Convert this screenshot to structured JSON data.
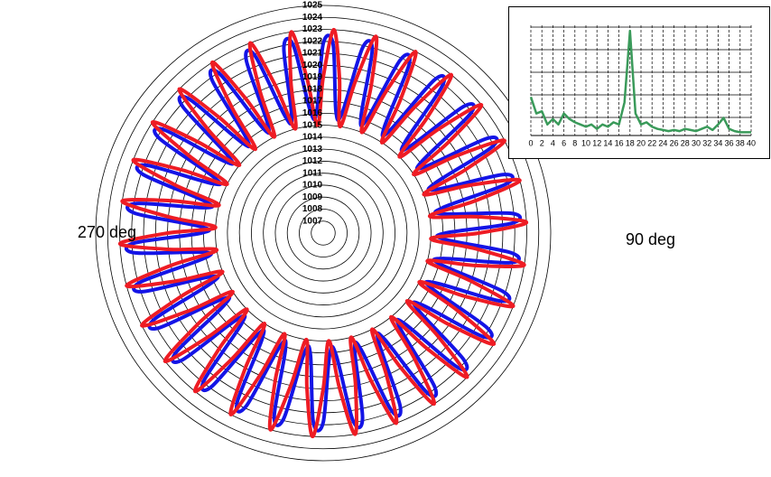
{
  "chart_data": [
    {
      "type": "polar",
      "rlim": [
        1006,
        1025
      ],
      "rticks": [
        1007,
        1008,
        1009,
        1010,
        1011,
        1012,
        1013,
        1014,
        1015,
        1016,
        1017,
        1018,
        1019,
        1020,
        1021,
        1022,
        1023,
        1024,
        1025
      ],
      "theta_direction": "clockwise",
      "theta_zero": "top",
      "theta_labels": [
        {
          "value": 270,
          "label": "270 deg"
        },
        {
          "value": 90,
          "label": "90 deg"
        }
      ],
      "theta": [
        0,
        3,
        6,
        9,
        12,
        15,
        18,
        21,
        24,
        27,
        30,
        33,
        36,
        39,
        42,
        45,
        48,
        51,
        54,
        57,
        60,
        63,
        66,
        69,
        72,
        75,
        78,
        81,
        84,
        87,
        90,
        93,
        96,
        99,
        102,
        105,
        108,
        111,
        114,
        117,
        120,
        123,
        126,
        129,
        132,
        135,
        138,
        141,
        144,
        147,
        150,
        153,
        156,
        159,
        162,
        165,
        168,
        171,
        174,
        177,
        180,
        183,
        186,
        189,
        192,
        195,
        198,
        201,
        204,
        207,
        210,
        213,
        216,
        219,
        222,
        225,
        228,
        231,
        234,
        237,
        240,
        243,
        246,
        249,
        252,
        255,
        258,
        261,
        264,
        267,
        270,
        273,
        276,
        279,
        282,
        285,
        288,
        291,
        294,
        297,
        300,
        303,
        306,
        309,
        312,
        315,
        318,
        321,
        324,
        327,
        330,
        333,
        336,
        339,
        342,
        345,
        348,
        351,
        354,
        357
      ],
      "series": [
        {
          "color": "#1414e6",
          "values": [
            1021.8,
            1021.8,
            1016.2,
            1016.2,
            1021.8,
            1021.8,
            1016.2,
            1016.2,
            1021.8,
            1021.8,
            1016.2,
            1016.2,
            1021.8,
            1021.8,
            1016.2,
            1016.2,
            1021.8,
            1021.8,
            1016.2,
            1016.2,
            1021.8,
            1021.8,
            1016.2,
            1016.2,
            1021.8,
            1021.8,
            1016.2,
            1016.2,
            1021.8,
            1021.8,
            1016.2,
            1016.2,
            1021.8,
            1021.8,
            1016.2,
            1016.2,
            1021.8,
            1021.8,
            1016.2,
            1016.2,
            1021.8,
            1021.8,
            1016.2,
            1016.2,
            1021.8,
            1021.8,
            1016.2,
            1016.2,
            1021.8,
            1021.8,
            1016.2,
            1016.2,
            1021.8,
            1021.8,
            1016.2,
            1016.2,
            1021.8,
            1021.8,
            1016.2,
            1016.2,
            1021.8,
            1021.8,
            1016.2,
            1016.2,
            1021.8,
            1021.8,
            1016.2,
            1016.2,
            1021.8,
            1021.8,
            1016.2,
            1016.2,
            1021.8,
            1021.8,
            1016.2,
            1016.2,
            1021.8,
            1021.8,
            1016.2,
            1016.2,
            1021.8,
            1021.8,
            1016.2,
            1016.2,
            1021.8,
            1021.8,
            1016.2,
            1016.2,
            1021.8,
            1021.8,
            1016.2,
            1016.2,
            1021.8,
            1021.8,
            1016.2,
            1016.2,
            1021.8,
            1021.8,
            1016.2,
            1016.2,
            1021.8,
            1021.8,
            1016.2,
            1016.2,
            1021.8,
            1021.8,
            1016.2,
            1016.2,
            1021.8,
            1021.8,
            1016.2,
            1016.2,
            1021.8,
            1021.8,
            1016.2,
            1016.2,
            1021.8,
            1021.8,
            1016.2,
            1016.2
          ]
        },
        {
          "color": "#ee1c24",
          "values": [
            1019,
            1023,
            1019,
            1015,
            1019,
            1023,
            1019,
            1015,
            1019,
            1023,
            1019,
            1015,
            1019,
            1023,
            1019,
            1015,
            1019,
            1023,
            1019,
            1015,
            1019,
            1023,
            1019,
            1015,
            1019,
            1023,
            1019,
            1015,
            1019,
            1023,
            1019,
            1015,
            1019,
            1023,
            1019,
            1015,
            1019,
            1023,
            1019,
            1015,
            1019,
            1023,
            1019,
            1015,
            1019,
            1023,
            1019,
            1015,
            1019,
            1023,
            1019,
            1015,
            1019,
            1023,
            1019,
            1015,
            1019,
            1023,
            1019,
            1015,
            1019,
            1023,
            1019,
            1015,
            1019,
            1023,
            1019,
            1015,
            1019,
            1023,
            1019,
            1015,
            1019,
            1023,
            1019,
            1015,
            1019,
            1023,
            1019,
            1015,
            1019,
            1023,
            1019,
            1015,
            1019,
            1023,
            1019,
            1015,
            1019,
            1023,
            1019,
            1015,
            1019,
            1023,
            1019,
            1015,
            1019,
            1023,
            1019,
            1015,
            1019,
            1023,
            1019,
            1015,
            1019,
            1023,
            1019,
            1015,
            1019,
            1023,
            1019,
            1015,
            1019,
            1023,
            1019,
            1015,
            1019,
            1023,
            1019,
            1015
          ]
        }
      ]
    },
    {
      "type": "line",
      "x": [
        0,
        1,
        2,
        3,
        4,
        5,
        6,
        7,
        8,
        9,
        10,
        11,
        12,
        13,
        14,
        15,
        16,
        17,
        18,
        19,
        20,
        21,
        22,
        23,
        24,
        25,
        26,
        27,
        28,
        29,
        30,
        31,
        32,
        33,
        34,
        35,
        36,
        37,
        38,
        39,
        40
      ],
      "values": [
        3.5,
        2,
        2.2,
        1,
        1.5,
        1,
        2,
        1.5,
        1.2,
        1,
        0.8,
        1,
        0.6,
        1,
        0.8,
        1.2,
        1,
        3,
        9.5,
        2,
        1,
        1.2,
        0.8,
        0.6,
        0.5,
        0.4,
        0.5,
        0.4,
        0.6,
        0.5,
        0.4,
        0.6,
        0.8,
        0.5,
        1,
        1.6,
        0.6,
        0.4,
        0.3,
        0.3,
        0.3
      ],
      "color": "#3a9a5a",
      "xlim": [
        0,
        40
      ],
      "ylim": [
        0,
        10
      ],
      "xticks": [
        0,
        2,
        4,
        6,
        8,
        10,
        12,
        14,
        16,
        18,
        20,
        22,
        24,
        26,
        28,
        30,
        32,
        34,
        36,
        38,
        40
      ],
      "grid": true
    }
  ]
}
